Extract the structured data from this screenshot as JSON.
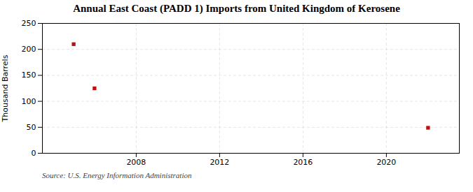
{
  "chart_data": {
    "type": "scatter",
    "title": "Annual East Coast (PADD 1) Imports from United Kingdom of Kerosene",
    "ylabel": "Thousand Barrels",
    "source": "Source: U.S. Energy Information Administration",
    "x": [
      2005,
      2006,
      2022
    ],
    "values": [
      210,
      125,
      49
    ],
    "color": "#bb1111",
    "marker": "square",
    "xlim": [
      2003.5,
      2023.5
    ],
    "xticks": [
      2008,
      2012,
      2016,
      2020
    ],
    "ylim": [
      0,
      250
    ],
    "yticks": [
      0,
      50,
      100,
      150,
      200,
      250
    ],
    "grid": true
  }
}
